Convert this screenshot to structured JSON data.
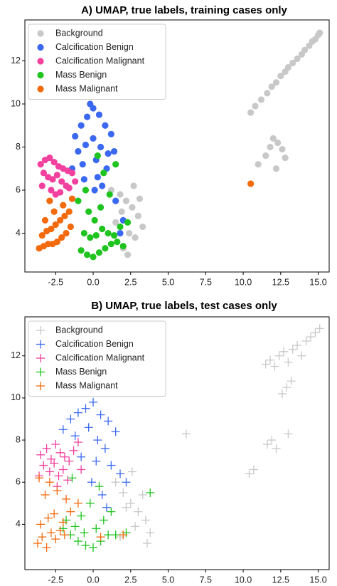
{
  "chart_data": [
    {
      "type": "scatter",
      "title": "A) UMAP, true labels, training cases only",
      "marker": "circle",
      "legend": "upper left",
      "xlim": [
        -4.55,
        15.73
      ],
      "ylim": [
        2.2,
        13.9
      ],
      "xticks": [
        -2.5,
        {
          "value": 0,
          "label": "0.0"
        },
        2.5,
        {
          "value": 5,
          "label": "5.0"
        },
        7.5,
        {
          "value": 10,
          "label": "10.0"
        },
        12.5,
        {
          "value": 15,
          "label": "15.0"
        }
      ],
      "yticks": [
        4,
        6,
        8,
        10,
        12
      ],
      "series": [
        {
          "name": "Background",
          "color": "#c8c8c8",
          "x": [
            10.5,
            10.8,
            11.2,
            11.6,
            11.9,
            12.2,
            12.5,
            12.8,
            13.0,
            13.3,
            13.6,
            13.9,
            14.1,
            14.4,
            14.6,
            14.8,
            15.0,
            15.1,
            11.5,
            11.8,
            12.0,
            12.3,
            12.6,
            12.8,
            12.2,
            11.0,
            1.2,
            1.8,
            2.2,
            2.6,
            3.0,
            3.3,
            2.8,
            2.0,
            1.5,
            2.4,
            3.1,
            2.7,
            1.9,
            2.3
          ],
          "y": [
            9.6,
            9.9,
            10.2,
            10.5,
            10.8,
            11.0,
            11.3,
            11.5,
            11.7,
            11.9,
            12.1,
            12.3,
            12.5,
            12.7,
            12.9,
            13.0,
            13.2,
            13.3,
            7.6,
            8.0,
            8.4,
            8.2,
            7.9,
            7.5,
            7.0,
            7.2,
            6.0,
            5.8,
            5.5,
            5.2,
            4.8,
            4.3,
            3.8,
            3.3,
            4.5,
            4.0,
            5.6,
            6.2,
            5.0,
            3.0
          ]
        },
        {
          "name": "Calcification Benign",
          "color": "#3b68f0",
          "x": [
            -1.2,
            -0.8,
            -0.4,
            0,
            0.4,
            0.8,
            1.2,
            -1.0,
            -0.5,
            0,
            0.5,
            1.0,
            -1.4,
            -0.7,
            0.2,
            0.9,
            1.4,
            -0.2,
            0.3,
            -0.6,
            0.6,
            1.5,
            2.0,
            1.8,
            0.1
          ],
          "y": [
            8.5,
            9.0,
            9.4,
            9.8,
            9.5,
            9.0,
            8.6,
            7.8,
            8.1,
            8.4,
            8.0,
            7.7,
            7.0,
            7.2,
            7.4,
            7.0,
            7.8,
            10.0,
            6.6,
            6.5,
            6.2,
            5.5,
            4.6,
            4.0,
            6.0
          ]
        },
        {
          "name": "Calcification Malignant",
          "color": "#f2409e",
          "x": [
            -3.5,
            -3.2,
            -2.9,
            -2.6,
            -2.3,
            -2.0,
            -1.7,
            -1.4,
            -3.3,
            -3.0,
            -2.7,
            -2.4,
            -2.1,
            -1.8,
            -3.4,
            -2.8,
            -2.2,
            -1.6,
            -1.2,
            -2.5
          ],
          "y": [
            7.2,
            7.4,
            7.5,
            7.3,
            7.1,
            7.0,
            6.9,
            6.8,
            6.8,
            6.6,
            6.5,
            6.7,
            6.4,
            6.2,
            6.2,
            6.0,
            5.9,
            6.1,
            6.4,
            5.8
          ]
        },
        {
          "name": "Mass Benign",
          "color": "#1fc41f",
          "x": [
            -0.8,
            -0.4,
            0,
            0.4,
            0.8,
            1.2,
            1.6,
            2.0,
            -0.6,
            -0.2,
            0.2,
            0.6,
            1.0,
            1.4,
            1.8,
            2.3,
            -0.3,
            0.5,
            0.1,
            -1.0,
            0.7,
            1.5,
            0.3,
            -0.5,
            1.1
          ],
          "y": [
            3.2,
            3.0,
            2.9,
            3.1,
            3.3,
            3.5,
            3.6,
            3.4,
            4.0,
            3.8,
            3.9,
            4.2,
            4.0,
            3.9,
            4.3,
            4.5,
            5.0,
            5.2,
            4.6,
            5.5,
            6.8,
            7.2,
            7.6,
            6.0,
            5.8
          ]
        },
        {
          "name": "Mass Malignant",
          "color": "#f26a0c",
          "x": [
            -3.6,
            -3.3,
            -3.0,
            -2.7,
            -2.4,
            -2.1,
            -1.8,
            -1.5,
            -3.4,
            -3.1,
            -2.8,
            -2.5,
            -2.2,
            -1.9,
            -1.6,
            -3.2,
            -2.6,
            -2.0,
            -1.4,
            -2.9,
            10.5
          ],
          "y": [
            3.3,
            3.4,
            3.5,
            3.5,
            3.6,
            3.8,
            4.0,
            4.3,
            3.9,
            4.1,
            4.2,
            4.4,
            4.6,
            4.8,
            5.0,
            4.6,
            5.0,
            5.3,
            5.6,
            5.5,
            6.3
          ]
        }
      ]
    },
    {
      "type": "scatter",
      "title": "B) UMAP, true labels, test cases only",
      "marker": "plus",
      "legend": "upper left",
      "xlim": [
        -4.55,
        15.73
      ],
      "ylim": [
        1.85,
        13.85
      ],
      "xticks": [
        -2.5,
        {
          "value": 0,
          "label": "0.0"
        },
        2.5,
        {
          "value": 5,
          "label": "5.0"
        },
        7.5,
        {
          "value": 10,
          "label": "10.0"
        },
        12.5,
        {
          "value": 15,
          "label": "15.0"
        }
      ],
      "yticks": [
        4,
        6,
        8,
        10,
        12
      ],
      "series": [
        {
          "name": "Background",
          "color": "#c8c8c8",
          "x": [
            10.4,
            10.7,
            11.5,
            11.8,
            12.1,
            12.4,
            12.7,
            13.0,
            13.3,
            13.6,
            13.9,
            14.2,
            14.5,
            14.8,
            15.1,
            12.6,
            12.9,
            13.2,
            11.6,
            11.9,
            12.2,
            13.0,
            6.2,
            1.5,
            2.0,
            2.5,
            3.0,
            3.5,
            3.8,
            2.2,
            2.8,
            3.3,
            1.8,
            3.6,
            2.6
          ],
          "y": [
            6.4,
            6.6,
            11.6,
            11.8,
            11.5,
            12.0,
            12.2,
            11.7,
            12.3,
            12.5,
            12.0,
            12.7,
            12.9,
            13.1,
            13.3,
            10.2,
            10.5,
            10.8,
            7.8,
            8.0,
            7.6,
            8.3,
            8.3,
            6.0,
            5.5,
            5.0,
            4.6,
            4.2,
            3.6,
            4.8,
            3.9,
            5.4,
            3.4,
            3.1,
            6.5
          ]
        },
        {
          "name": "Calcification Benign",
          "color": "#3b68f0",
          "x": [
            -1.5,
            -1.0,
            -0.5,
            0,
            0.5,
            1.0,
            1.5,
            -1.2,
            -0.3,
            0.3,
            0.8,
            -0.8,
            0.2,
            1.2,
            1.8,
            -0.1,
            0.6,
            2.2,
            -2.0,
            0.9
          ],
          "y": [
            9.0,
            9.3,
            9.5,
            9.8,
            9.2,
            8.9,
            8.4,
            8.2,
            8.6,
            8.0,
            7.6,
            7.2,
            7.0,
            6.8,
            6.4,
            6.0,
            5.4,
            6.0,
            8.5,
            4.8
          ]
        },
        {
          "name": "Calcification Malignant",
          "color": "#f2409e",
          "x": [
            -3.5,
            -3.1,
            -2.8,
            -2.5,
            -2.2,
            -1.9,
            -1.6,
            -1.3,
            -3.3,
            -2.9,
            -2.6,
            -2.3,
            -2.0,
            -1.7,
            -3.6,
            -2.4,
            -1.0,
            -0.8
          ],
          "y": [
            7.3,
            7.6,
            7.1,
            7.8,
            7.4,
            7.2,
            7.0,
            7.5,
            6.8,
            6.5,
            6.9,
            6.3,
            6.6,
            6.1,
            6.3,
            5.8,
            7.9,
            6.6
          ]
        },
        {
          "name": "Mass Benign",
          "color": "#1fc41f",
          "x": [
            -2.0,
            -1.5,
            -1.0,
            -0.5,
            0,
            0.5,
            1.0,
            -1.8,
            -1.2,
            -0.6,
            0.2,
            0.7,
            1.5,
            2.2,
            3.8,
            -0.2,
            0.4,
            -1.4,
            1.2,
            -0.8
          ],
          "y": [
            3.8,
            3.5,
            3.2,
            3.0,
            2.9,
            3.2,
            3.5,
            4.2,
            3.9,
            3.6,
            3.8,
            4.2,
            3.5,
            3.6,
            5.5,
            5.0,
            5.8,
            6.2,
            4.6,
            4.4
          ]
        },
        {
          "name": "Mass Malignant",
          "color": "#f26a0c",
          "x": [
            -3.7,
            -3.4,
            -3.1,
            -2.8,
            -2.5,
            -2.2,
            -1.9,
            -3.5,
            -3.0,
            -2.6,
            -2.0,
            -1.5,
            -3.2,
            -2.4,
            -1.8,
            -3.6,
            -2.9,
            -1.0,
            0.5,
            2.0
          ],
          "y": [
            3.1,
            3.4,
            2.9,
            3.6,
            3.3,
            3.7,
            3.5,
            4.0,
            4.3,
            4.5,
            4.1,
            4.6,
            5.4,
            5.6,
            5.2,
            6.2,
            6.0,
            5.0,
            3.4,
            3.5
          ]
        }
      ]
    }
  ]
}
